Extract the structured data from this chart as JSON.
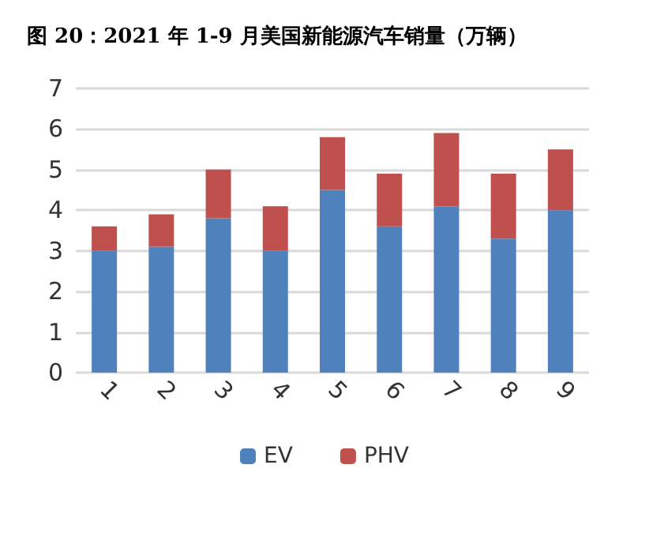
{
  "chart_data": {
    "type": "bar",
    "title": "图 20：2021 年 1-9 月美国新能源汽车销量（万辆）",
    "categories": [
      "1",
      "2",
      "3",
      "4",
      "5",
      "6",
      "7",
      "8",
      "9"
    ],
    "stacked": true,
    "series": [
      {
        "name": "EV",
        "color": "#4f81bd",
        "values": [
          3.0,
          3.1,
          3.8,
          3.0,
          4.5,
          3.6,
          4.1,
          3.3,
          4.0
        ]
      },
      {
        "name": "PHV",
        "color": "#c0504d",
        "values": [
          0.6,
          0.8,
          1.2,
          1.1,
          1.3,
          1.3,
          1.8,
          1.6,
          1.5
        ]
      }
    ],
    "ylim": [
      0,
      7
    ],
    "yticks": [
      0,
      1,
      2,
      3,
      4,
      5,
      6,
      7
    ],
    "grid": "y",
    "legend": "bottom"
  }
}
